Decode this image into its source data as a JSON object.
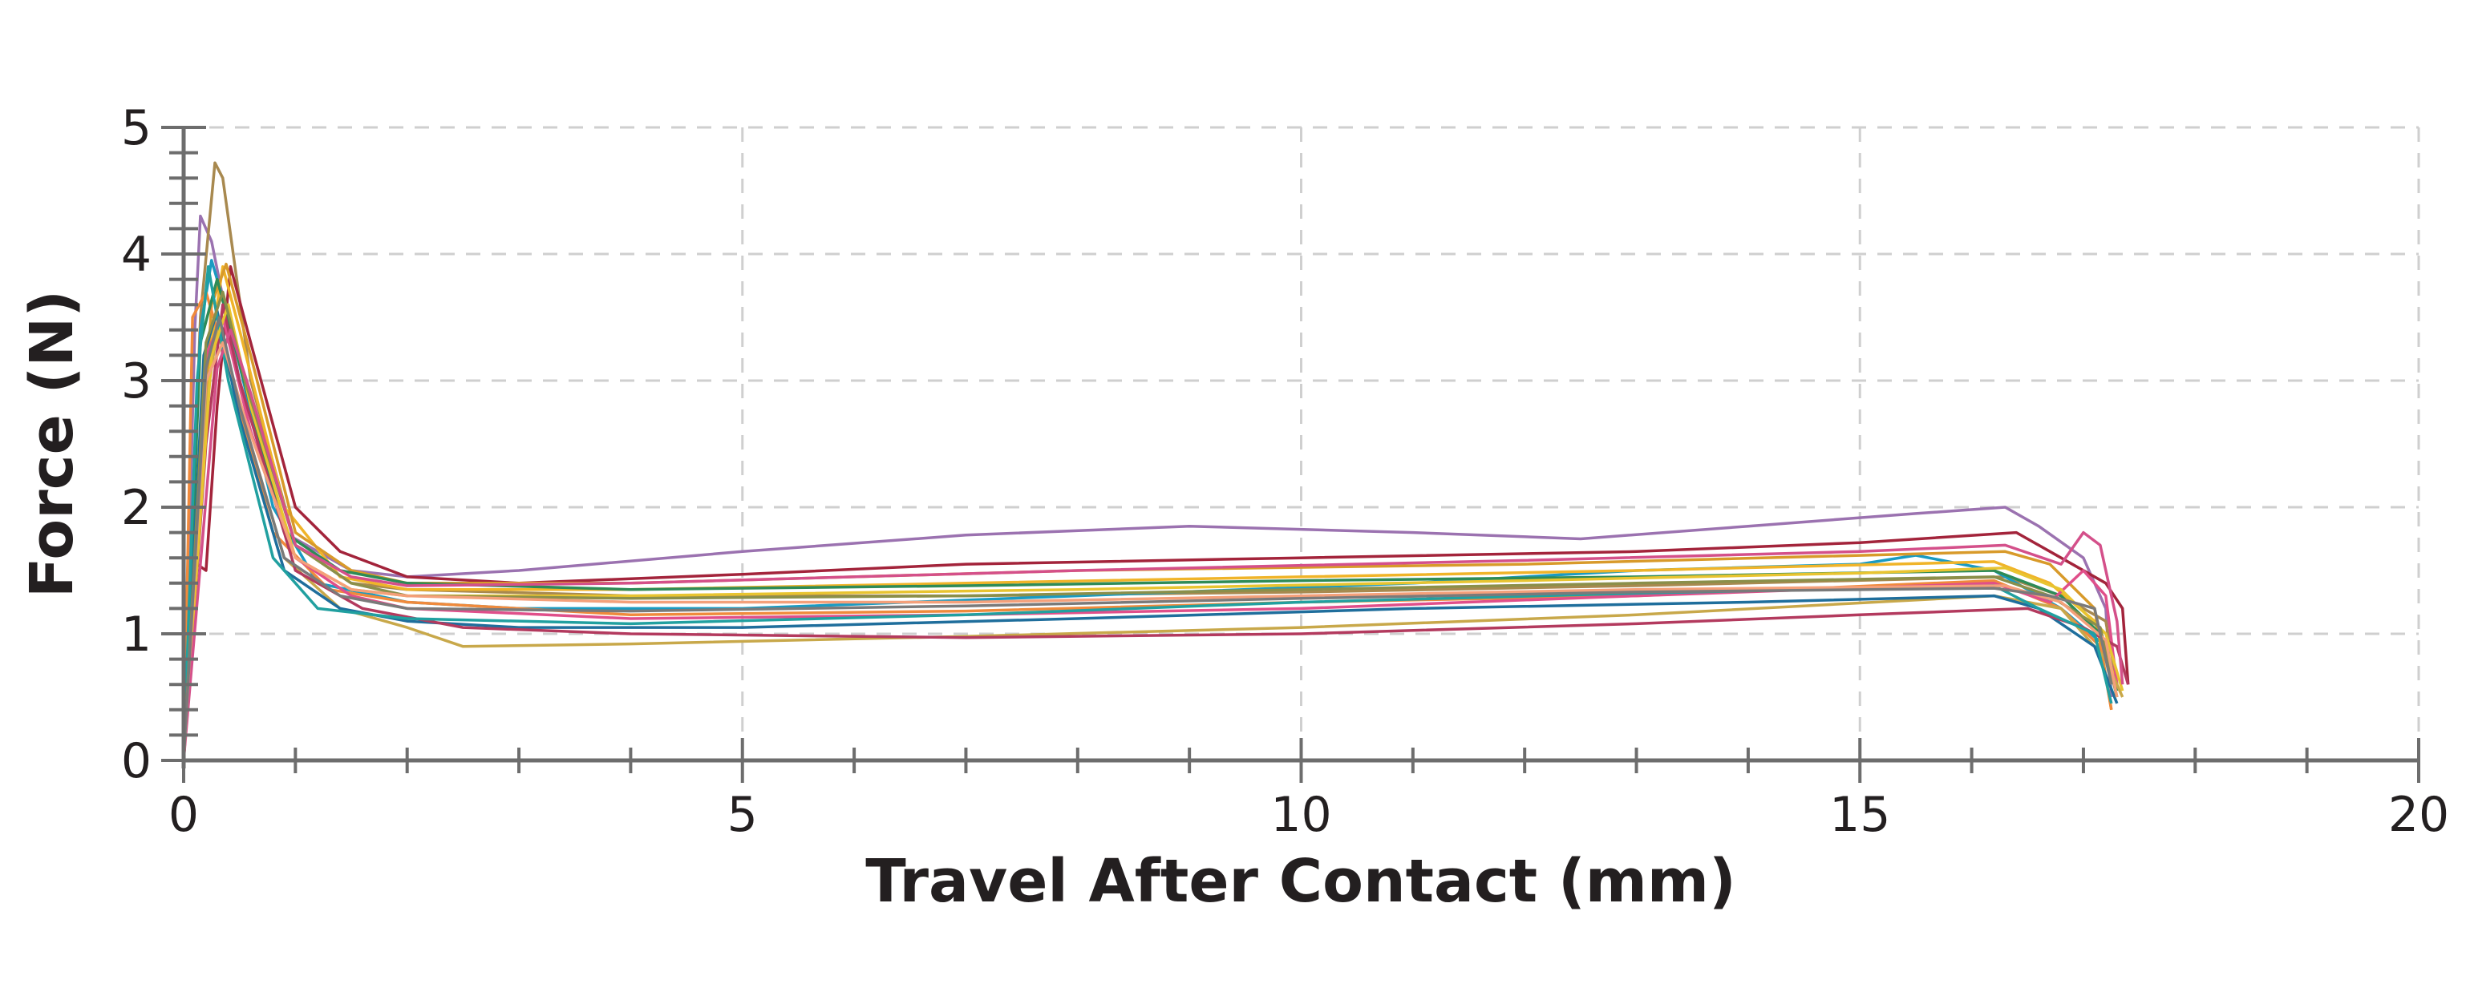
{
  "chart_data": {
    "type": "line",
    "title": "",
    "xlabel": "Travel After Contact (mm)",
    "ylabel": "Force (N)",
    "xlim": [
      0,
      20
    ],
    "ylim": [
      0,
      5
    ],
    "x_ticks": [
      "0",
      "5",
      "10",
      "15",
      "20"
    ],
    "y_ticks": [
      "0",
      "1",
      "2",
      "3",
      "4",
      "5"
    ],
    "x_minor_step": 1,
    "y_minor_step": 0.2,
    "grid": "dashed, major ticks",
    "legend": "none",
    "series": [
      {
        "color": "#9b72b0",
        "points": [
          [
            0,
            0
          ],
          [
            0.1,
            3.4
          ],
          [
            0.15,
            4.3
          ],
          [
            0.25,
            4.1
          ],
          [
            0.5,
            3.0
          ],
          [
            0.9,
            1.8
          ],
          [
            1.5,
            1.5
          ],
          [
            2,
            1.45
          ],
          [
            3,
            1.5
          ],
          [
            5,
            1.65
          ],
          [
            7,
            1.78
          ],
          [
            9,
            1.85
          ],
          [
            11,
            1.8
          ],
          [
            12.5,
            1.75
          ],
          [
            14,
            1.85
          ],
          [
            15.5,
            1.95
          ],
          [
            16.3,
            2.0
          ],
          [
            16.6,
            1.85
          ],
          [
            17.0,
            1.6
          ],
          [
            17.2,
            1.2
          ],
          [
            17.25,
            0.5
          ]
        ]
      },
      {
        "color": "#a8894f",
        "points": [
          [
            0,
            0
          ],
          [
            0.15,
            3.5
          ],
          [
            0.28,
            4.72
          ],
          [
            0.35,
            4.6
          ],
          [
            0.6,
            3.0
          ],
          [
            1.0,
            1.7
          ],
          [
            1.5,
            1.4
          ],
          [
            2,
            1.35
          ],
          [
            4,
            1.3
          ],
          [
            7,
            1.3
          ],
          [
            10,
            1.33
          ],
          [
            13,
            1.38
          ],
          [
            16.3,
            1.45
          ],
          [
            16.8,
            1.3
          ],
          [
            17.2,
            1.1
          ],
          [
            17.3,
            0.6
          ]
        ]
      },
      {
        "color": "#a3243b",
        "points": [
          [
            0,
            0
          ],
          [
            0.12,
            1.55
          ],
          [
            0.2,
            1.5
          ],
          [
            0.3,
            2.8
          ],
          [
            0.42,
            3.9
          ],
          [
            0.6,
            3.3
          ],
          [
            1.0,
            2.0
          ],
          [
            1.4,
            1.65
          ],
          [
            2,
            1.45
          ],
          [
            3,
            1.4
          ],
          [
            5,
            1.47
          ],
          [
            7,
            1.55
          ],
          [
            10,
            1.6
          ],
          [
            13,
            1.65
          ],
          [
            15,
            1.72
          ],
          [
            16.4,
            1.8
          ],
          [
            16.8,
            1.6
          ],
          [
            17.2,
            1.4
          ],
          [
            17.35,
            1.2
          ],
          [
            17.4,
            0.6
          ]
        ]
      },
      {
        "color": "#1a9bc2",
        "points": [
          [
            0,
            0
          ],
          [
            0.15,
            3.4
          ],
          [
            0.25,
            3.95
          ],
          [
            0.4,
            3.5
          ],
          [
            0.8,
            2.0
          ],
          [
            1.2,
            1.4
          ],
          [
            2,
            1.25
          ],
          [
            3,
            1.2
          ],
          [
            5,
            1.2
          ],
          [
            8,
            1.3
          ],
          [
            11,
            1.4
          ],
          [
            13,
            1.5
          ],
          [
            15,
            1.55
          ],
          [
            15.5,
            1.62
          ],
          [
            16.2,
            1.5
          ],
          [
            16.8,
            1.2
          ],
          [
            17.2,
            0.9
          ],
          [
            17.3,
            0.5
          ]
        ]
      },
      {
        "color": "#f0b429",
        "points": [
          [
            0,
            0
          ],
          [
            0.2,
            3.0
          ],
          [
            0.35,
            3.9
          ],
          [
            0.5,
            3.4
          ],
          [
            0.9,
            2.0
          ],
          [
            1.4,
            1.45
          ],
          [
            2,
            1.35
          ],
          [
            4,
            1.35
          ],
          [
            7,
            1.4
          ],
          [
            10,
            1.45
          ],
          [
            13,
            1.5
          ],
          [
            16.2,
            1.57
          ],
          [
            16.7,
            1.4
          ],
          [
            17.1,
            1.1
          ],
          [
            17.3,
            0.6
          ]
        ]
      },
      {
        "color": "#d89a2a",
        "points": [
          [
            0,
            0
          ],
          [
            0.25,
            3.6
          ],
          [
            0.38,
            3.92
          ],
          [
            0.6,
            3.2
          ],
          [
            1.0,
            1.8
          ],
          [
            1.5,
            1.5
          ],
          [
            2,
            1.4
          ],
          [
            4,
            1.4
          ],
          [
            8,
            1.5
          ],
          [
            12,
            1.55
          ],
          [
            16.3,
            1.65
          ],
          [
            16.7,
            1.55
          ],
          [
            17.1,
            1.2
          ],
          [
            17.25,
            0.4
          ]
        ]
      },
      {
        "color": "#f08a3c",
        "points": [
          [
            0,
            0
          ],
          [
            0.08,
            3.5
          ],
          [
            0.2,
            3.7
          ],
          [
            0.4,
            3.1
          ],
          [
            0.8,
            1.8
          ],
          [
            1.3,
            1.35
          ],
          [
            2,
            1.25
          ],
          [
            4,
            1.15
          ],
          [
            7,
            1.18
          ],
          [
            10,
            1.25
          ],
          [
            13,
            1.3
          ],
          [
            16.2,
            1.42
          ],
          [
            16.8,
            1.2
          ],
          [
            17.15,
            0.9
          ],
          [
            17.25,
            0.4
          ]
        ]
      },
      {
        "color": "#2e8b57",
        "points": [
          [
            0,
            0
          ],
          [
            0.15,
            3.3
          ],
          [
            0.3,
            3.8
          ],
          [
            0.45,
            3.3
          ],
          [
            0.9,
            1.8
          ],
          [
            1.4,
            1.5
          ],
          [
            2,
            1.4
          ],
          [
            4,
            1.35
          ],
          [
            7,
            1.38
          ],
          [
            10,
            1.42
          ],
          [
            13,
            1.45
          ],
          [
            16.2,
            1.5
          ],
          [
            16.8,
            1.3
          ],
          [
            17.15,
            1.0
          ],
          [
            17.3,
            0.55
          ]
        ]
      },
      {
        "color": "#e04f8a",
        "points": [
          [
            0,
            0
          ],
          [
            0.2,
            3.2
          ],
          [
            0.35,
            3.5
          ],
          [
            0.6,
            2.6
          ],
          [
            1.0,
            1.6
          ],
          [
            1.5,
            1.3
          ],
          [
            2,
            1.2
          ],
          [
            4,
            1.12
          ],
          [
            7,
            1.15
          ],
          [
            10,
            1.2
          ],
          [
            13,
            1.3
          ],
          [
            16.2,
            1.4
          ],
          [
            16.7,
            1.25
          ],
          [
            17.0,
            1.5
          ],
          [
            17.2,
            1.3
          ],
          [
            17.3,
            0.6
          ]
        ]
      },
      {
        "color": "#c8a84a",
        "points": [
          [
            0,
            0
          ],
          [
            0.2,
            2.8
          ],
          [
            0.3,
            3.4
          ],
          [
            0.5,
            2.8
          ],
          [
            0.9,
            1.6
          ],
          [
            1.4,
            1.2
          ],
          [
            2,
            1.05
          ],
          [
            2.5,
            0.9
          ],
          [
            4,
            0.92
          ],
          [
            7,
            0.98
          ],
          [
            10,
            1.05
          ],
          [
            13,
            1.15
          ],
          [
            16.2,
            1.3
          ],
          [
            16.8,
            1.2
          ],
          [
            17.2,
            0.8
          ],
          [
            17.35,
            0.5
          ]
        ]
      },
      {
        "color": "#1f6e9c",
        "points": [
          [
            0,
            0
          ],
          [
            0.18,
            3.2
          ],
          [
            0.3,
            3.55
          ],
          [
            0.5,
            2.7
          ],
          [
            0.9,
            1.5
          ],
          [
            1.4,
            1.2
          ],
          [
            2,
            1.1
          ],
          [
            3,
            1.05
          ],
          [
            5,
            1.05
          ],
          [
            8,
            1.12
          ],
          [
            11,
            1.2
          ],
          [
            14,
            1.25
          ],
          [
            16.2,
            1.3
          ],
          [
            16.6,
            1.2
          ],
          [
            17.1,
            0.9
          ],
          [
            17.3,
            0.45
          ]
        ]
      },
      {
        "color": "#b33a5e",
        "points": [
          [
            0,
            0
          ],
          [
            0.2,
            2.5
          ],
          [
            0.35,
            3.6
          ],
          [
            0.5,
            3.0
          ],
          [
            1.0,
            1.5
          ],
          [
            1.6,
            1.2
          ],
          [
            2.5,
            1.05
          ],
          [
            4,
            1.0
          ],
          [
            7,
            0.97
          ],
          [
            10,
            1.0
          ],
          [
            13,
            1.08
          ],
          [
            15,
            1.15
          ],
          [
            16.5,
            1.2
          ],
          [
            17.0,
            1.05
          ],
          [
            17.3,
            0.9
          ],
          [
            17.4,
            0.6
          ]
        ]
      },
      {
        "color": "#21a0a0",
        "points": [
          [
            0,
            0
          ],
          [
            0.12,
            3.0
          ],
          [
            0.22,
            3.9
          ],
          [
            0.4,
            3.0
          ],
          [
            0.8,
            1.6
          ],
          [
            1.2,
            1.2
          ],
          [
            2,
            1.12
          ],
          [
            4,
            1.08
          ],
          [
            7,
            1.15
          ],
          [
            10,
            1.25
          ],
          [
            13,
            1.32
          ],
          [
            16.2,
            1.38
          ],
          [
            16.6,
            1.2
          ],
          [
            17.1,
            1.0
          ],
          [
            17.25,
            0.45
          ]
        ]
      },
      {
        "color": "#e8c430",
        "points": [
          [
            0,
            0
          ],
          [
            0.25,
            3.2
          ],
          [
            0.4,
            3.6
          ],
          [
            0.6,
            2.8
          ],
          [
            1.0,
            1.6
          ],
          [
            1.5,
            1.35
          ],
          [
            2,
            1.3
          ],
          [
            4,
            1.3
          ],
          [
            8,
            1.35
          ],
          [
            12,
            1.42
          ],
          [
            15,
            1.48
          ],
          [
            16.3,
            1.52
          ],
          [
            16.8,
            1.35
          ],
          [
            17.2,
            1.0
          ],
          [
            17.35,
            0.55
          ]
        ]
      },
      {
        "color": "#8b8f4a",
        "points": [
          [
            0,
            0
          ],
          [
            0.2,
            3.3
          ],
          [
            0.35,
            3.7
          ],
          [
            0.55,
            3.0
          ],
          [
            1.0,
            1.7
          ],
          [
            1.5,
            1.4
          ],
          [
            2,
            1.3
          ],
          [
            4,
            1.28
          ],
          [
            7,
            1.3
          ],
          [
            10,
            1.35
          ],
          [
            13,
            1.4
          ],
          [
            16.2,
            1.45
          ],
          [
            16.7,
            1.3
          ],
          [
            17.15,
            1.05
          ],
          [
            17.3,
            0.5
          ]
        ]
      },
      {
        "color": "#d4508a",
        "points": [
          [
            0,
            0
          ],
          [
            0.3,
            3.1
          ],
          [
            0.42,
            3.4
          ],
          [
            0.6,
            2.9
          ],
          [
            1.0,
            1.7
          ],
          [
            1.5,
            1.45
          ],
          [
            2,
            1.38
          ],
          [
            4,
            1.4
          ],
          [
            8,
            1.5
          ],
          [
            12,
            1.58
          ],
          [
            15,
            1.65
          ],
          [
            16.3,
            1.7
          ],
          [
            16.8,
            1.55
          ],
          [
            17.0,
            1.8
          ],
          [
            17.15,
            1.7
          ],
          [
            17.3,
            1.1
          ],
          [
            17.35,
            0.6
          ]
        ]
      },
      {
        "color": "#f4a07a",
        "points": [
          [
            0,
            0
          ],
          [
            0.2,
            3.0
          ],
          [
            0.35,
            3.3
          ],
          [
            0.55,
            2.7
          ],
          [
            1.0,
            1.6
          ],
          [
            1.5,
            1.35
          ],
          [
            2,
            1.3
          ],
          [
            4,
            1.25
          ],
          [
            7,
            1.25
          ],
          [
            10,
            1.3
          ],
          [
            13,
            1.35
          ],
          [
            16.3,
            1.38
          ],
          [
            16.8,
            1.25
          ],
          [
            17.2,
            0.95
          ],
          [
            17.3,
            0.5
          ]
        ]
      },
      {
        "color": "#7a7a7a",
        "points": [
          [
            0,
            0
          ],
          [
            0.2,
            3.1
          ],
          [
            0.32,
            3.5
          ],
          [
            0.5,
            2.8
          ],
          [
            0.9,
            1.6
          ],
          [
            1.4,
            1.3
          ],
          [
            2,
            1.2
          ],
          [
            4,
            1.18
          ],
          [
            7,
            1.22
          ],
          [
            10,
            1.28
          ],
          [
            13,
            1.33
          ],
          [
            16.2,
            1.36
          ],
          [
            16.7,
            1.3
          ],
          [
            17.1,
            1.2
          ],
          [
            17.25,
            0.6
          ]
        ]
      }
    ]
  }
}
